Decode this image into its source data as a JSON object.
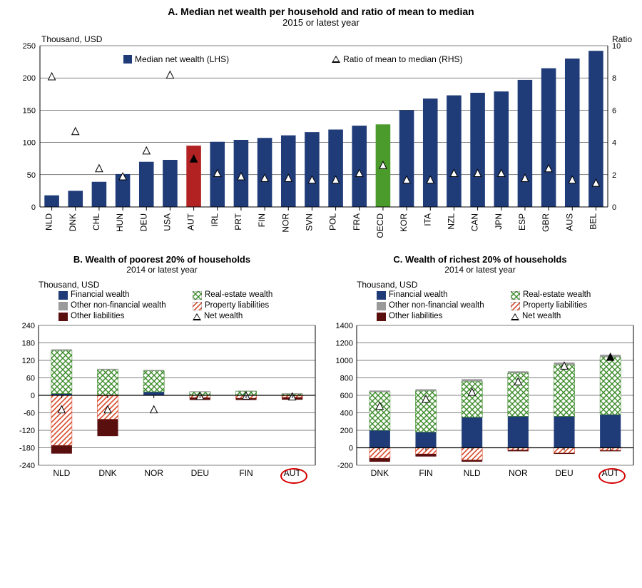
{
  "colors": {
    "bar_default": "#1f3b78",
    "bar_aut": "#b22222",
    "bar_oecd": "#4a9b2b",
    "grid": "#000000",
    "financial": "#1f3b78",
    "realestate_fill": "#ffffff",
    "realestate_cross": "#3a8a28",
    "other_nonfin": "#9a9a9a",
    "prop_liab_fill": "#ffffff",
    "prop_liab_line": "#d94a2a",
    "other_liab": "#5a0f0f",
    "highlight_circle": "#d40000"
  },
  "panelA": {
    "title": "A. Median net wealth per household and ratio of mean to median",
    "subtitle": "2015 or latest year",
    "left_axis_label": "Thousand, USD",
    "right_axis_label": "Ratio",
    "ylim_left": [
      0,
      250
    ],
    "ytick_left_step": 50,
    "ylim_right": [
      0,
      10
    ],
    "ytick_right_step": 2,
    "legend": {
      "bar": "Median net wealth (LHS)",
      "marker": "Ratio of mean to median (RHS)"
    },
    "countries": [
      {
        "code": "NLD",
        "bar": 18,
        "ratio": 8.1,
        "color": "#1f3b78"
      },
      {
        "code": "DNK",
        "bar": 25,
        "ratio": 4.7,
        "color": "#1f3b78"
      },
      {
        "code": "CHL",
        "bar": 39,
        "ratio": 2.4,
        "color": "#1f3b78"
      },
      {
        "code": "HUN",
        "bar": 51,
        "ratio": 1.9,
        "color": "#1f3b78"
      },
      {
        "code": "DEU",
        "bar": 70,
        "ratio": 3.5,
        "color": "#1f3b78"
      },
      {
        "code": "USA",
        "bar": 73,
        "ratio": 8.2,
        "color": "#1f3b78"
      },
      {
        "code": "AUT",
        "bar": 95,
        "ratio": 3.0,
        "color": "#b22222",
        "marker_fill": "solid"
      },
      {
        "code": "IRL",
        "bar": 101,
        "ratio": 2.1,
        "color": "#1f3b78"
      },
      {
        "code": "PRT",
        "bar": 104,
        "ratio": 1.9,
        "color": "#1f3b78"
      },
      {
        "code": "FIN",
        "bar": 107,
        "ratio": 1.8,
        "color": "#1f3b78"
      },
      {
        "code": "NOR",
        "bar": 111,
        "ratio": 1.8,
        "color": "#1f3b78"
      },
      {
        "code": "SVN",
        "bar": 116,
        "ratio": 1.7,
        "color": "#1f3b78"
      },
      {
        "code": "POL",
        "bar": 120,
        "ratio": 1.7,
        "color": "#1f3b78"
      },
      {
        "code": "FRA",
        "bar": 126,
        "ratio": 2.1,
        "color": "#1f3b78"
      },
      {
        "code": "OECD",
        "bar": 128,
        "ratio": 2.6,
        "color": "#4a9b2b"
      },
      {
        "code": "KOR",
        "bar": 150,
        "ratio": 1.7,
        "color": "#1f3b78"
      },
      {
        "code": "ITA",
        "bar": 168,
        "ratio": 1.7,
        "color": "#1f3b78"
      },
      {
        "code": "NZL",
        "bar": 173,
        "ratio": 2.1,
        "color": "#1f3b78"
      },
      {
        "code": "CAN",
        "bar": 177,
        "ratio": 2.1,
        "color": "#1f3b78"
      },
      {
        "code": "JPN",
        "bar": 179,
        "ratio": 2.1,
        "color": "#1f3b78"
      },
      {
        "code": "ESP",
        "bar": 197,
        "ratio": 1.8,
        "color": "#1f3b78"
      },
      {
        "code": "GBR",
        "bar": 215,
        "ratio": 2.4,
        "color": "#1f3b78"
      },
      {
        "code": "AUS",
        "bar": 230,
        "ratio": 1.7,
        "color": "#1f3b78"
      },
      {
        "code": "BEL",
        "bar": 242,
        "ratio": 1.5,
        "color": "#1f3b78"
      }
    ]
  },
  "panelB": {
    "title": "B. Wealth of poorest 20% of households",
    "subtitle": "2014 or latest year",
    "axis_label": "Thousand, USD",
    "ylim": [
      -240,
      240
    ],
    "ytick_step": 60,
    "countries": [
      {
        "code": "NLD",
        "financial": 6,
        "realestate": 148,
        "other_nonfin": 4,
        "prop_liab": -172,
        "other_liab": -28,
        "net": -48
      },
      {
        "code": "DNK",
        "financial": -2,
        "realestate": 88,
        "other_nonfin": 3,
        "prop_liab": -80,
        "other_liab": -58,
        "net": -48
      },
      {
        "code": "NOR",
        "financial": 12,
        "realestate": 72,
        "other_nonfin": 3,
        "prop_liab": 0,
        "other_liab": 0,
        "net": -48
      },
      {
        "code": "DEU",
        "financial": 2,
        "realestate": 10,
        "other_nonfin": 2,
        "prop_liab": -8,
        "other_liab": -8,
        "net": -2
      },
      {
        "code": "FIN",
        "financial": 2,
        "realestate": 12,
        "other_nonfin": 2,
        "prop_liab": -10,
        "other_liab": -6,
        "net": -1
      },
      {
        "code": "AUT",
        "financial": -2,
        "realestate": 5,
        "other_nonfin": 2,
        "prop_liab": -5,
        "other_liab": -8,
        "net": -4
      }
    ]
  },
  "panelC": {
    "title": "C. Wealth of richest 20% of households",
    "subtitle": "2014 or latest year",
    "axis_label": "Thousand, USD",
    "ylim": [
      -200,
      1400
    ],
    "ytick_step": 200,
    "countries": [
      {
        "code": "DNK",
        "financial": 200,
        "realestate": 440,
        "other_nonfin": 15,
        "prop_liab": -120,
        "other_liab": -40,
        "net": 480
      },
      {
        "code": "FIN",
        "financial": 180,
        "realestate": 470,
        "other_nonfin": 20,
        "prop_liab": -70,
        "other_liab": -30,
        "net": 560
      },
      {
        "code": "NLD",
        "financial": 350,
        "realestate": 410,
        "other_nonfin": 25,
        "prop_liab": -140,
        "other_liab": -20,
        "net": 640
      },
      {
        "code": "NOR",
        "financial": 360,
        "realestate": 495,
        "other_nonfin": 20,
        "prop_liab": -25,
        "other_liab": -15,
        "net": 760
      },
      {
        "code": "DEU",
        "financial": 360,
        "realestate": 590,
        "other_nonfin": 25,
        "prop_liab": -60,
        "other_liab": -10,
        "net": 940
      },
      {
        "code": "AUT",
        "financial": 380,
        "realestate": 660,
        "other_nonfin": 25,
        "prop_liab": -30,
        "other_liab": -10,
        "net": 1040,
        "marker_fill": "solid"
      }
    ]
  },
  "bc_legend": {
    "financial": "Financial wealth",
    "realestate": "Real-estate wealth",
    "other_nonfin": "Other non-financial wealth",
    "prop_liab": "Property liabilities",
    "other_liab": "Other liabilities",
    "net": "Net wealth"
  }
}
